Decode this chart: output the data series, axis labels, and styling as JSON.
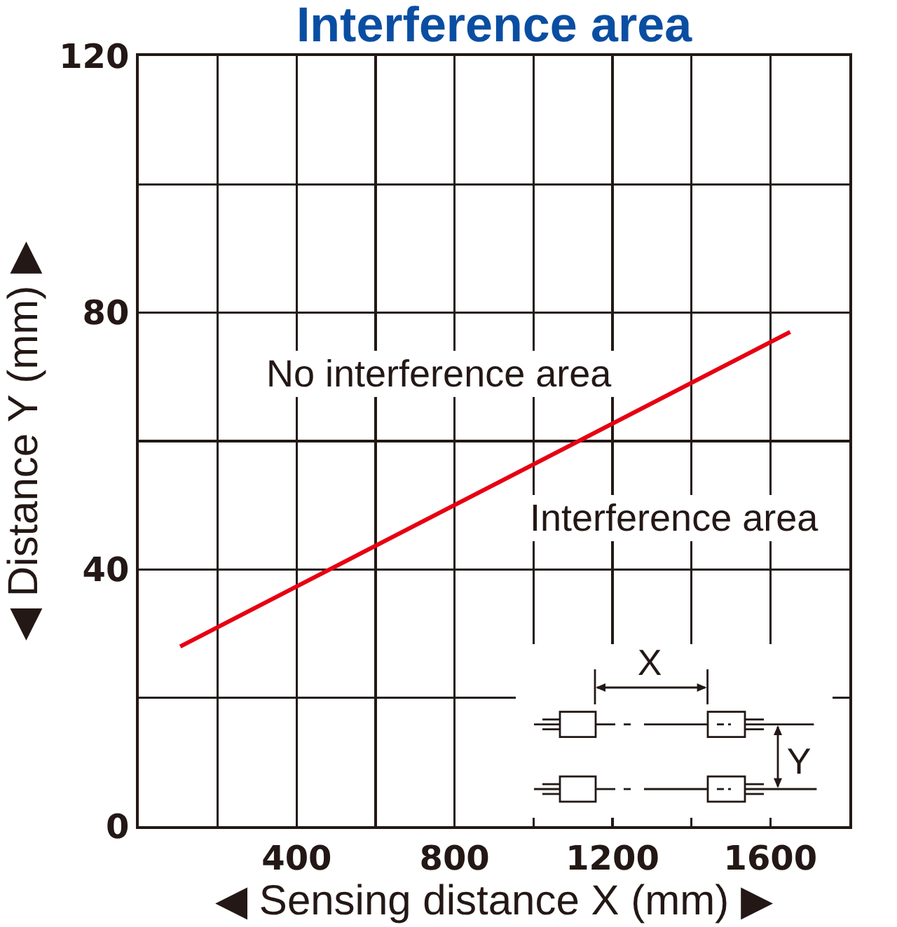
{
  "chart_data": {
    "type": "line",
    "title": "Interference area",
    "xlabel": "◀ Sensing distance X (mm) ▶",
    "ylabel": "◀ Distance Y (mm) ▶",
    "x": [
      105,
      1650
    ],
    "series": [
      {
        "color": "#e60012",
        "values": [
          28,
          77
        ]
      }
    ],
    "xlim": [
      0,
      1800
    ],
    "ylim": [
      0,
      120
    ],
    "xticks": [
      {
        "value": 0,
        "label": null
      },
      {
        "value": 200,
        "label": null
      },
      400,
      {
        "value": 600,
        "label": null
      },
      800,
      {
        "value": 1000,
        "label": null
      },
      1200,
      {
        "value": 1400,
        "label": null
      },
      1600,
      {
        "value": 1800,
        "label": null
      }
    ],
    "yticks": [
      0,
      {
        "value": 20,
        "label": null
      },
      40,
      {
        "value": 60,
        "label": null
      },
      80,
      {
        "value": 100,
        "label": null
      },
      120
    ],
    "grid": true,
    "line_style": "solid",
    "annotations": [
      "No interference area",
      "Interference area",
      "X",
      "Y"
    ]
  }
}
